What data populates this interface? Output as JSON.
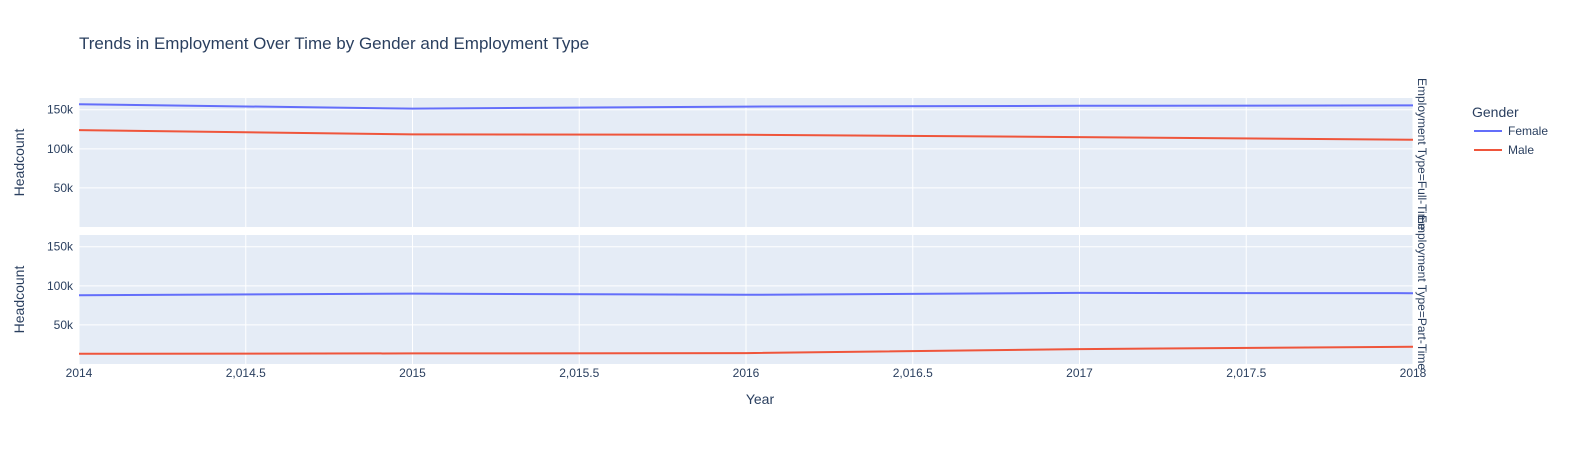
{
  "chart_data": {
    "type": "line",
    "title": "Trends in Employment Over Time by Gender and Employment Type",
    "xlabel": "Year",
    "ylabel": "Headcount",
    "x_ticks": [
      "2014",
      "2,014.5",
      "2015",
      "2,015.5",
      "2016",
      "2,016.5",
      "2017",
      "2,017.5",
      "2018"
    ],
    "x_tick_values": [
      2014,
      2014.5,
      2015,
      2015.5,
      2016,
      2016.5,
      2017,
      2017.5,
      2018
    ],
    "xlim": [
      2014,
      2018
    ],
    "ylim": [
      0,
      165000
    ],
    "y_ticks": [
      "50k",
      "100k",
      "150k"
    ],
    "y_tick_values": [
      50000,
      100000,
      150000
    ],
    "grid": true,
    "legend": {
      "title": "Gender",
      "placement": "top-right",
      "entries": [
        "Female",
        "Male"
      ]
    },
    "colors": {
      "Female": "#636efa",
      "Male": "#ef553b",
      "plot_bg": "#e5ecf6"
    },
    "x": [
      2014,
      2015,
      2016,
      2017,
      2018
    ],
    "panels": [
      {
        "label": "Employment Type=Full-Time",
        "series": [
          {
            "name": "Female",
            "values": [
              157000,
              151500,
              154000,
              155000,
              155500
            ]
          },
          {
            "name": "Male",
            "values": [
              124000,
              118500,
              118000,
              115000,
              111500
            ]
          }
        ]
      },
      {
        "label": "Employment Type=Part-Time",
        "series": [
          {
            "name": "Female",
            "values": [
              88000,
              90000,
              88500,
              91000,
              90500
            ]
          },
          {
            "name": "Male",
            "values": [
              13000,
              13500,
              14000,
              19000,
              22000
            ]
          }
        ]
      }
    ]
  }
}
